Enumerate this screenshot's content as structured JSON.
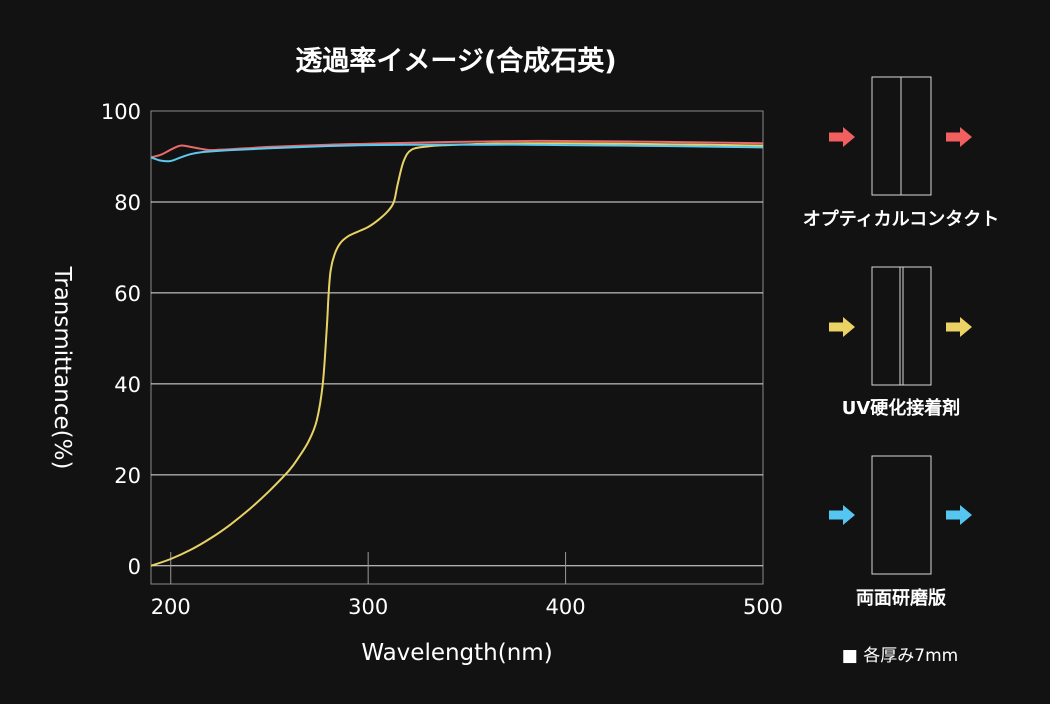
{
  "chart_data": {
    "type": "line",
    "title": "透過率イメージ(合成石英)",
    "xlabel": "Wavelength(nm)",
    "ylabel": "Transmittance(%)",
    "xlim": [
      190,
      500
    ],
    "ylim": [
      -4,
      100
    ],
    "x_ticks": [
      200,
      300,
      400,
      500
    ],
    "x_tick_labels": [
      "200",
      "300",
      "400",
      "500"
    ],
    "y_ticks": [
      0,
      20,
      40,
      60,
      80,
      100
    ],
    "y_tick_labels": [
      "0",
      "20",
      "40",
      "60",
      "80",
      "100"
    ],
    "grid": {
      "horizontal": true,
      "vertical": false
    },
    "series": [
      {
        "color": "#e8d266",
        "x": [
          190,
          200,
          210,
          220,
          230,
          240,
          250,
          260,
          265,
          270,
          274,
          277,
          279,
          280,
          281,
          283,
          286,
          290,
          295,
          300,
          305,
          310,
          313,
          315,
          318,
          322,
          330,
          340,
          360,
          380,
          400,
          450,
          500
        ],
        "y": [
          0,
          1.5,
          3.5,
          6,
          9,
          12.5,
          16.5,
          21,
          24,
          27.5,
          32,
          40,
          52,
          60,
          65,
          68.5,
          71,
          72.5,
          73.5,
          74.5,
          76,
          78,
          80,
          84,
          89,
          91.5,
          92.2,
          92.5,
          92.8,
          92.9,
          92.9,
          92.7,
          92.4
        ]
      },
      {
        "color": "#e86a6a",
        "x": [
          190,
          195,
          200,
          205,
          210,
          215,
          220,
          230,
          250,
          280,
          300,
          330,
          360,
          380,
          400,
          450,
          500
        ],
        "y": [
          89.8,
          90.4,
          91.5,
          92.4,
          92.1,
          91.7,
          91.4,
          91.6,
          92.1,
          92.6,
          92.8,
          93.1,
          93.3,
          93.4,
          93.4,
          93.2,
          92.9
        ]
      },
      {
        "color": "#5bc8f0",
        "x": [
          190,
          195,
          200,
          205,
          210,
          215,
          220,
          230,
          250,
          280,
          300,
          330,
          360,
          380,
          400,
          450,
          500
        ],
        "y": [
          89.8,
          89.1,
          89.0,
          89.8,
          90.5,
          90.9,
          91.1,
          91.4,
          91.8,
          92.3,
          92.5,
          92.6,
          92.6,
          92.6,
          92.5,
          92.3,
          92.0
        ]
      }
    ]
  },
  "legend_panel": {
    "items": [
      {
        "label": "オプティカルコンタクト",
        "arrow_color": "#f25f5f",
        "join": "contact"
      },
      {
        "label": "UV硬化接着剤",
        "arrow_color": "#ead264",
        "join": "adhesive"
      },
      {
        "label": "両面研磨版",
        "arrow_color": "#55c6f2",
        "join": "single"
      }
    ],
    "note": "■ 各厚み7mm"
  }
}
